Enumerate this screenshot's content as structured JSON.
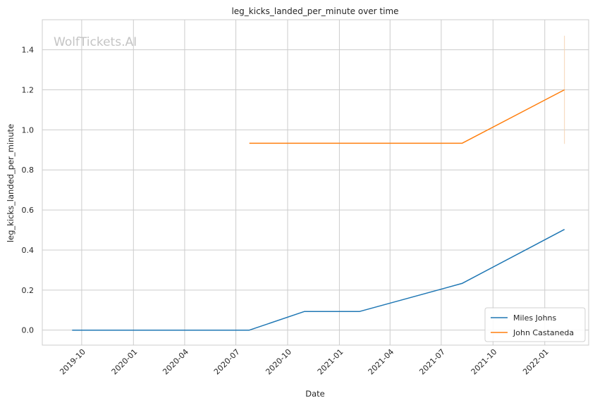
{
  "title": "leg_kicks_landed_per_minute over time",
  "watermark": "WolfTickets.AI",
  "chart_data": {
    "type": "line",
    "title": "leg_kicks_landed_per_minute over time",
    "xlabel": "Date",
    "ylabel": "leg_kicks_landed_per_minute",
    "xlim": [
      "2019-07-23",
      "2022-03-20"
    ],
    "ylim": [
      -0.075,
      1.55
    ],
    "x_ticks": [
      "2019-10",
      "2020-01",
      "2020-04",
      "2020-07",
      "2020-10",
      "2021-01",
      "2021-04",
      "2021-07",
      "2021-10",
      "2022-01"
    ],
    "y_ticks": [
      "0.0",
      "0.2",
      "0.4",
      "0.6",
      "0.8",
      "1.0",
      "1.2",
      "1.4"
    ],
    "grid": true,
    "legend_position": "lower-right",
    "series": [
      {
        "name": "Miles Johns",
        "color": "#1f77b4",
        "points": [
          {
            "x": "2019-09-14",
            "y": 0.0
          },
          {
            "x": "2020-07-25",
            "y": 0.0
          },
          {
            "x": "2020-10-31",
            "y": 0.093
          },
          {
            "x": "2021-02-06",
            "y": 0.093
          },
          {
            "x": "2021-08-07",
            "y": 0.233
          },
          {
            "x": "2022-02-05",
            "y": 0.503
          }
        ]
      },
      {
        "name": "John Castaneda",
        "color": "#ff7f0e",
        "points": [
          {
            "x": "2020-07-25",
            "y": 0.933
          },
          {
            "x": "2021-08-07",
            "y": 0.933
          },
          {
            "x": "2022-02-05",
            "y": 1.2
          }
        ]
      }
    ],
    "error_bar": {
      "x": "2022-02-05",
      "low": 0.93,
      "high": 1.47,
      "color": "#f5d5b5"
    }
  }
}
